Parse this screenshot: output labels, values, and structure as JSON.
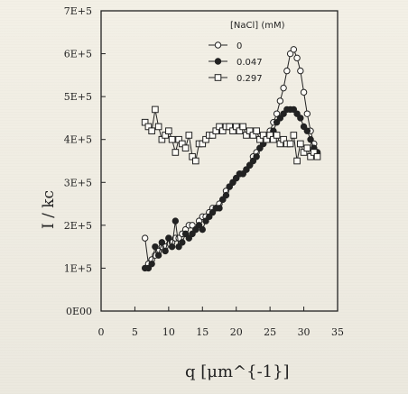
{
  "chart_data": {
    "type": "line",
    "title": "",
    "xlabel": "q [μm^{-1}]",
    "ylabel": "I / kc",
    "xlim": [
      0,
      35
    ],
    "ylim": [
      0,
      700000
    ],
    "x_ticks": [
      0,
      5,
      10,
      15,
      20,
      25,
      30,
      35
    ],
    "x_tick_labels": [
      "0",
      "5",
      "10",
      "15",
      "20",
      "25",
      "30",
      "35"
    ],
    "y_ticks": [
      0,
      100000,
      200000,
      300000,
      400000,
      500000,
      600000,
      700000
    ],
    "y_tick_labels": [
      "0E00",
      "1E+5",
      "2E+5",
      "3E+5",
      "4E+5",
      "5E+5",
      "6E+5",
      "7E+5"
    ],
    "legend": {
      "title": "[NaCl] (mM)",
      "entries": [
        "0",
        "0.047",
        "0.297"
      ],
      "position": "top-right"
    },
    "series": [
      {
        "name": "0",
        "marker": "open-circle",
        "x": [
          6.5,
          7.0,
          7.5,
          8.0,
          8.5,
          9.0,
          9.5,
          10.0,
          10.5,
          11.0,
          11.5,
          12.0,
          12.5,
          13.0,
          13.5,
          14.0,
          14.5,
          15.0,
          15.5,
          16.0,
          16.5,
          17.0,
          17.5,
          18.0,
          18.5,
          19.0,
          19.5,
          20.0,
          20.5,
          21.0,
          21.5,
          22.0,
          22.5,
          23.0,
          23.5,
          24.0,
          24.5,
          25.0,
          25.5,
          26.0,
          26.5,
          27.0,
          27.5,
          28.0,
          28.5,
          29.0,
          29.5,
          30.0,
          30.5,
          31.0,
          31.5,
          32.0
        ],
        "y": [
          170000,
          110000,
          120000,
          130000,
          140000,
          150000,
          150000,
          170000,
          160000,
          170000,
          170000,
          180000,
          190000,
          200000,
          200000,
          190000,
          210000,
          220000,
          220000,
          230000,
          240000,
          240000,
          250000,
          260000,
          280000,
          290000,
          300000,
          310000,
          320000,
          320000,
          330000,
          340000,
          360000,
          370000,
          380000,
          390000,
          410000,
          420000,
          440000,
          460000,
          490000,
          520000,
          560000,
          600000,
          610000,
          590000,
          560000,
          510000,
          460000,
          420000,
          390000,
          370000
        ]
      },
      {
        "name": "0.047",
        "marker": "filled-circle",
        "x": [
          6.5,
          7.0,
          7.5,
          8.0,
          8.5,
          9.0,
          9.5,
          10.0,
          10.5,
          11.0,
          11.5,
          12.0,
          12.5,
          13.0,
          13.5,
          14.0,
          14.5,
          15.0,
          15.5,
          16.0,
          16.5,
          17.0,
          17.5,
          18.0,
          18.5,
          19.0,
          19.5,
          20.0,
          20.5,
          21.0,
          21.5,
          22.0,
          22.5,
          23.0,
          23.5,
          24.0,
          24.5,
          25.0,
          25.5,
          26.0,
          26.5,
          27.0,
          27.5,
          28.0,
          28.5,
          29.0,
          29.5,
          30.0,
          30.5,
          31.0,
          31.5,
          32.0
        ],
        "y": [
          100000,
          100000,
          110000,
          150000,
          130000,
          160000,
          140000,
          170000,
          150000,
          210000,
          150000,
          160000,
          180000,
          170000,
          180000,
          190000,
          200000,
          190000,
          210000,
          220000,
          230000,
          240000,
          240000,
          260000,
          270000,
          290000,
          300000,
          310000,
          320000,
          320000,
          330000,
          340000,
          350000,
          360000,
          380000,
          390000,
          400000,
          410000,
          420000,
          440000,
          450000,
          460000,
          470000,
          470000,
          470000,
          460000,
          450000,
          430000,
          420000,
          400000,
          380000,
          370000
        ]
      },
      {
        "name": "0.297",
        "marker": "open-square",
        "x": [
          6.5,
          7.0,
          7.5,
          8.0,
          8.5,
          9.0,
          9.5,
          10.0,
          10.5,
          11.0,
          11.5,
          12.0,
          12.5,
          13.0,
          13.5,
          14.0,
          14.5,
          15.0,
          15.5,
          16.0,
          16.5,
          17.0,
          17.5,
          18.0,
          18.5,
          19.0,
          19.5,
          20.0,
          20.5,
          21.0,
          21.5,
          22.0,
          22.5,
          23.0,
          23.5,
          24.0,
          24.5,
          25.0,
          25.5,
          26.0,
          26.5,
          27.0,
          27.5,
          28.0,
          28.5,
          29.0,
          29.5,
          30.0,
          30.5,
          31.0,
          31.5,
          32.0
        ],
        "y": [
          440000,
          430000,
          420000,
          470000,
          430000,
          400000,
          410000,
          420000,
          400000,
          370000,
          400000,
          390000,
          380000,
          410000,
          360000,
          350000,
          390000,
          390000,
          400000,
          410000,
          410000,
          420000,
          430000,
          420000,
          430000,
          430000,
          420000,
          430000,
          420000,
          430000,
          410000,
          420000,
          410000,
          420000,
          400000,
          410000,
          400000,
          410000,
          400000,
          410000,
          390000,
          400000,
          390000,
          390000,
          410000,
          350000,
          390000,
          370000,
          380000,
          360000,
          370000,
          360000
        ]
      }
    ]
  }
}
